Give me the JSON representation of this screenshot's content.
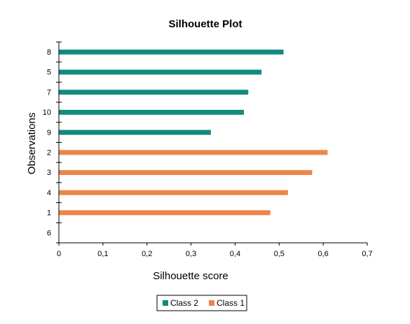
{
  "chart_data": {
    "type": "bar",
    "orientation": "horizontal",
    "title": "Silhouette Plot",
    "xlabel": "Silhouette score",
    "ylabel": "Observations",
    "xlim": [
      0,
      0.7
    ],
    "x_ticks": [
      "0",
      "0,1",
      "0,2",
      "0,3",
      "0,4",
      "0,5",
      "0,6",
      "0,7"
    ],
    "x_tick_values": [
      0,
      0.1,
      0.2,
      0.3,
      0.4,
      0.5,
      0.6,
      0.7
    ],
    "categories": [
      "8",
      "5",
      "7",
      "10",
      "9",
      "2",
      "3",
      "4",
      "1",
      "6"
    ],
    "bars": [
      {
        "label": "8",
        "value": 0.51,
        "series": "Class 2"
      },
      {
        "label": "5",
        "value": 0.46,
        "series": "Class 2"
      },
      {
        "label": "7",
        "value": 0.43,
        "series": "Class 2"
      },
      {
        "label": "10",
        "value": 0.42,
        "series": "Class 2"
      },
      {
        "label": "9",
        "value": 0.345,
        "series": "Class 2"
      },
      {
        "label": "2",
        "value": 0.61,
        "series": "Class 1"
      },
      {
        "label": "3",
        "value": 0.575,
        "series": "Class 1"
      },
      {
        "label": "4",
        "value": 0.52,
        "series": "Class 1"
      },
      {
        "label": "1",
        "value": 0.48,
        "series": "Class 1"
      },
      {
        "label": "6",
        "value": null,
        "series": "Class 1"
      }
    ],
    "series": [
      {
        "name": "Class 2",
        "color": "#138a7f"
      },
      {
        "name": "Class 1",
        "color": "#ee8547"
      }
    ],
    "legend_position": "bottom",
    "grid": false
  }
}
